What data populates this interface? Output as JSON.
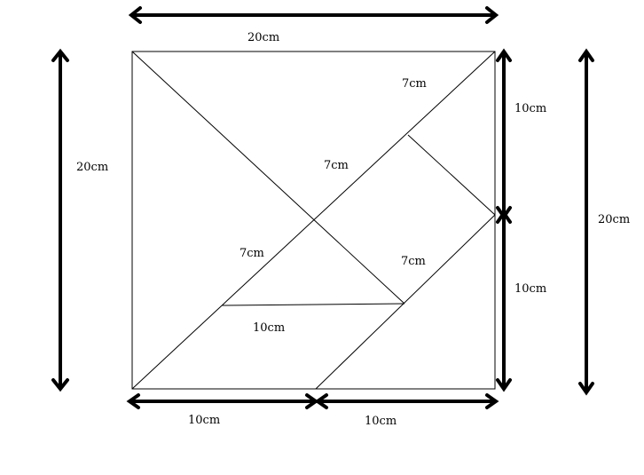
{
  "diagram": {
    "labels": {
      "top_width": "20cm",
      "left_height": "20cm",
      "right_height": "20cm",
      "right_upper": "10cm",
      "right_lower": "10cm",
      "bottom_left": "10cm",
      "bottom_right": "10cm",
      "inner_base": "10cm",
      "diag_top": "7cm",
      "diag_mid": "7cm",
      "diag_left": "7cm",
      "diag_right": "7cm"
    }
  }
}
